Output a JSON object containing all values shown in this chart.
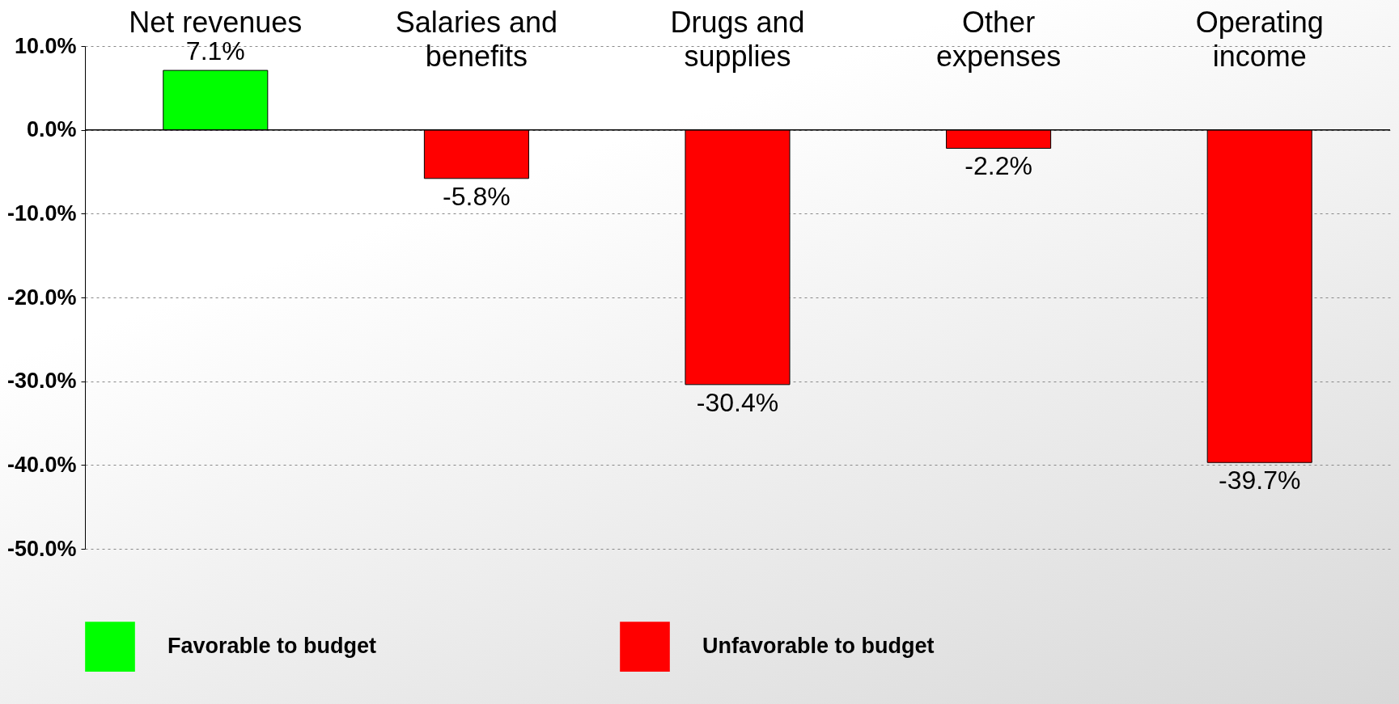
{
  "chart_data": {
    "type": "bar",
    "categories": [
      "Net revenues",
      "Salaries and benefits",
      "Drugs and supplies",
      "Other expenses",
      "Operating income"
    ],
    "series": [
      {
        "name": "Favorable to budget",
        "color": "#00ff00",
        "values": [
          7.1,
          null,
          null,
          null,
          null
        ],
        "value_labels": [
          "7.1%",
          null,
          null,
          null,
          null
        ]
      },
      {
        "name": "Unfavorable to budget",
        "color": "#ff0000",
        "values": [
          null,
          -5.8,
          -30.4,
          -2.2,
          -39.7
        ],
        "value_labels": [
          null,
          "-5.8%",
          "-30.4%",
          "-2.2%",
          "-39.7%"
        ]
      }
    ],
    "ylim": [
      -50,
      10
    ],
    "yticks": [
      {
        "value": 10,
        "label": "10.0%"
      },
      {
        "value": 0,
        "label": "0.0%"
      },
      {
        "value": -10,
        "label": "-10.0%"
      },
      {
        "value": -20,
        "label": "-20.0%"
      },
      {
        "value": -30,
        "label": "-30.0%"
      },
      {
        "value": -40,
        "label": "-40.0%"
      },
      {
        "value": -50,
        "label": "-50.0%"
      }
    ],
    "grid": "y",
    "legend": "bottom"
  }
}
